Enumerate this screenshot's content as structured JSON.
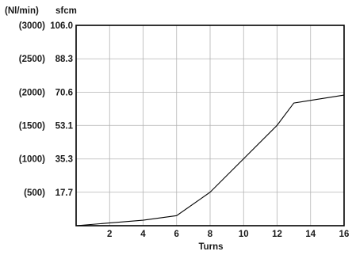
{
  "chart_data": {
    "type": "line",
    "xlabel": "Turns",
    "ylabel_left": "(Nl/min)",
    "ylabel_right": "sfcm",
    "x_ticks": [
      "2",
      "4",
      "6",
      "8",
      "10",
      "12",
      "14",
      "16"
    ],
    "y_ticks_flow": [
      "(500)",
      "(1000)",
      "(1500)",
      "(2000)",
      "(2500)",
      "(3000)"
    ],
    "y_ticks_sfcm": [
      "17.7",
      "35.3",
      "53.1",
      "70.6",
      "88.3",
      "106.0"
    ],
    "xlim": [
      0,
      16
    ],
    "ylim": [
      0,
      106
    ],
    "grid": true,
    "line_color": "#000000",
    "grid_color": "#b3b3b3",
    "series": [
      {
        "x": [
          0,
          4,
          6,
          8,
          12,
          13,
          16
        ],
        "y": [
          0,
          2.9,
          5.3,
          17.7,
          53.1,
          64.9,
          69.1
        ]
      }
    ]
  }
}
